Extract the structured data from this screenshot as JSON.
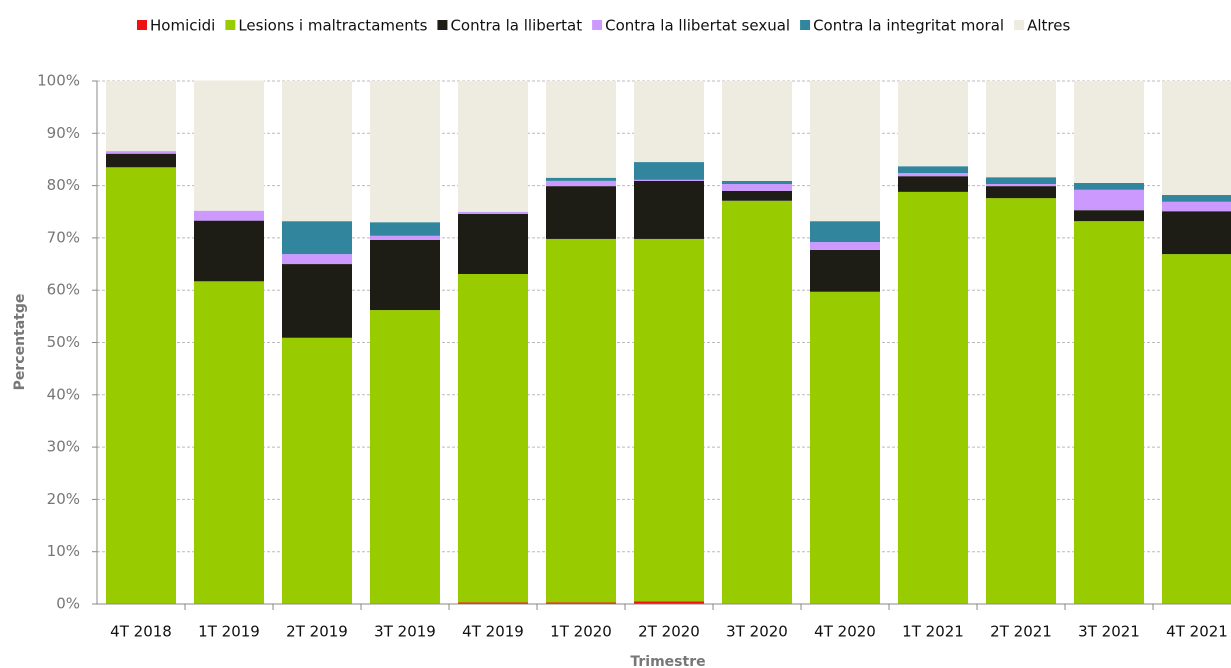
{
  "chart_data": {
    "type": "stacked_bar",
    "xlabel": "Trimestre",
    "ylabel": "Percentatge",
    "categories": [
      "4T 2018",
      "1T 2019",
      "2T 2019",
      "3T 2019",
      "4T 2019",
      "1T 2020",
      "2T 2020",
      "3T 2020",
      "4T 2020",
      "1T 2021",
      "2T 2021",
      "3T 2021",
      "4T 2021"
    ],
    "series": [
      {
        "name": "Homicidi",
        "color": "#ee1111",
        "values": [
          0,
          0,
          0,
          0,
          0.3,
          0.3,
          0.5,
          0,
          0,
          0,
          0,
          0,
          0
        ]
      },
      {
        "name": "Lesions i maltractaments",
        "color": "#99cc00",
        "values": [
          83.5,
          61.7,
          50.9,
          56.2,
          62.8,
          69.5,
          69.3,
          77.1,
          59.7,
          78.8,
          77.6,
          73.2,
          66.9
        ]
      },
      {
        "name": "Contra la llibertat",
        "color": "#1d1d15",
        "values": [
          2.6,
          11.6,
          14.1,
          13.4,
          11.5,
          10.1,
          11.1,
          1.9,
          8.0,
          3.0,
          2.3,
          2.1,
          8.2
        ]
      },
      {
        "name": "Contra la llibertat sexual",
        "color": "#cc99ff",
        "values": [
          0.5,
          1.9,
          1.9,
          0.8,
          0.4,
          1.0,
          0.2,
          1.3,
          1.5,
          0.6,
          0.4,
          3.9,
          1.8
        ]
      },
      {
        "name": "Contra la integritat moral",
        "color": "#31859c",
        "values": [
          0,
          0,
          6.3,
          2.6,
          0,
          0.6,
          3.4,
          0.6,
          4.0,
          1.3,
          1.3,
          1.3,
          1.3
        ]
      },
      {
        "name": "Altres",
        "color": "#eeece1",
        "values": [
          13.4,
          24.9,
          26.8,
          27.0,
          25.0,
          18.5,
          15.5,
          19.1,
          26.8,
          16.3,
          18.4,
          19.5,
          21.8
        ]
      }
    ],
    "ylim": [
      0,
      100
    ],
    "yticks": [
      {
        "value": 0,
        "label": "0%"
      },
      {
        "value": 10,
        "label": "10%"
      },
      {
        "value": 20,
        "label": "20%"
      },
      {
        "value": 30,
        "label": "30%"
      },
      {
        "value": 40,
        "label": "40%"
      },
      {
        "value": 50,
        "label": "50%"
      },
      {
        "value": 60,
        "label": "60%"
      },
      {
        "value": 70,
        "label": "70%"
      },
      {
        "value": 80,
        "label": "80%"
      },
      {
        "value": 90,
        "label": "90%"
      },
      {
        "value": 100,
        "label": "100%"
      }
    ],
    "grid": true,
    "legend": "top"
  }
}
